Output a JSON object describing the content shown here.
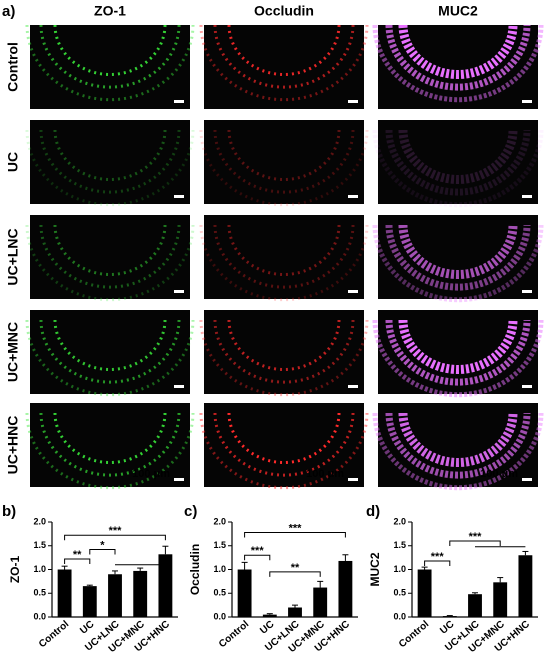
{
  "figure": {
    "panel_labels": [
      "a)",
      "b)",
      "c)",
      "d)"
    ],
    "columns": [
      "ZO-1",
      "Occludin",
      "MUC2"
    ],
    "rows": [
      "Control",
      "UC",
      "UC+LNC",
      "UC+MNC",
      "UC+HNC"
    ],
    "scale_bar": "100 μm"
  },
  "chart_data": [
    {
      "type": "bar",
      "ylabel": "ZO-1",
      "color": "#000000",
      "categories": [
        "Control",
        "UC",
        "UC+LNC",
        "UC+MNC",
        "UC+HNC"
      ],
      "values": [
        1.0,
        0.65,
        0.9,
        0.97,
        1.32
      ],
      "errors": [
        0.07,
        0.02,
        0.07,
        0.06,
        0.17
      ],
      "ylim": [
        0,
        2
      ],
      "yticks": [
        {
          "value": 0,
          "label": "0.0"
        },
        {
          "value": 0.5,
          "label": "0.5"
        },
        {
          "value": 1,
          "label": "1.0"
        },
        {
          "value": 1.5,
          "label": "1.5"
        },
        {
          "value": 2,
          "label": "2.0"
        }
      ],
      "annotations": [
        "**",
        "*",
        "***"
      ]
    },
    {
      "type": "bar",
      "ylabel": "Occludin",
      "color": "#000000",
      "categories": [
        "Control",
        "UC",
        "UC+LNC",
        "UC+MNC",
        "UC+HNC"
      ],
      "values": [
        1.0,
        0.05,
        0.2,
        0.62,
        1.18
      ],
      "errors": [
        0.15,
        0.02,
        0.05,
        0.13,
        0.13
      ],
      "ylim": [
        0,
        2
      ],
      "yticks": [
        {
          "value": 0,
          "label": "0.0"
        },
        {
          "value": 0.5,
          "label": "0.5"
        },
        {
          "value": 1,
          "label": "1.0"
        },
        {
          "value": 1.5,
          "label": "1.5"
        },
        {
          "value": 2,
          "label": "2.0"
        }
      ],
      "annotations": [
        "***",
        "***",
        "**"
      ]
    },
    {
      "type": "bar",
      "ylabel": "MUC2",
      "color": "#000000",
      "categories": [
        "Control",
        "UC",
        "UC+LNC",
        "UC+MNC",
        "UC+HNC"
      ],
      "values": [
        1.0,
        0.02,
        0.48,
        0.73,
        1.3
      ],
      "errors": [
        0.05,
        0.01,
        0.03,
        0.1,
        0.08
      ],
      "ylim": [
        0,
        2
      ],
      "yticks": [
        {
          "value": 0,
          "label": "0.0"
        },
        {
          "value": 0.5,
          "label": "0.5"
        },
        {
          "value": 1,
          "label": "1.0"
        },
        {
          "value": 1.5,
          "label": "1.5"
        },
        {
          "value": 2,
          "label": "2.0"
        }
      ],
      "annotations": [
        "***",
        "***"
      ]
    }
  ]
}
